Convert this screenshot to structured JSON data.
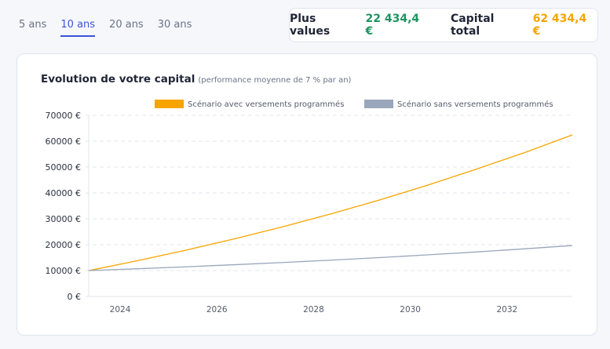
{
  "tabs": [
    {
      "label": "5 ans"
    },
    {
      "label": "10 ans",
      "active": true
    },
    {
      "label": "20 ans"
    },
    {
      "label": "30 ans"
    }
  ],
  "summary": {
    "gains_label": "Plus values",
    "gains_value": "22 434,4 €",
    "total_label": "Capital total",
    "total_value": "62 434,4 €"
  },
  "colors": {
    "accent": "#3a55d8",
    "green": "#1e9461",
    "orange": "#f7a400",
    "gray": "#9aa6bb"
  },
  "chart_data": {
    "type": "line",
    "title": "Evolution de votre capital",
    "subtitle": "(performance moyenne de 7 % par an)",
    "legend_position": "top-right",
    "grid": "horizontal dashed",
    "ylim": [
      0,
      70000
    ],
    "xlim": [
      2023.35,
      2033.35
    ],
    "yticks": [
      "0 €",
      "10000 €",
      "20000 €",
      "30000 €",
      "40000 €",
      "50000 €",
      "60000 €",
      "70000 €"
    ],
    "xticks": [
      "2024",
      "2026",
      "2028",
      "2030",
      "2032"
    ],
    "x": [
      2023.35,
      2024.35,
      2025.35,
      2026.35,
      2027.35,
      2028.35,
      2029.35,
      2030.35,
      2031.35,
      2032.35,
      2033.35
    ],
    "series": [
      {
        "name": "Scénario avec versements programmés",
        "color": "#f7a400",
        "values": [
          10000,
          13800,
          17850,
          22200,
          26850,
          31850,
          37200,
          42950,
          49100,
          55500,
          62434
        ]
      },
      {
        "name": "Scénario sans versements programmés",
        "color": "#9aa6bb",
        "values": [
          10000,
          10700,
          11449,
          12250,
          13108,
          14026,
          15007,
          16058,
          17182,
          18385,
          19672
        ]
      }
    ]
  }
}
